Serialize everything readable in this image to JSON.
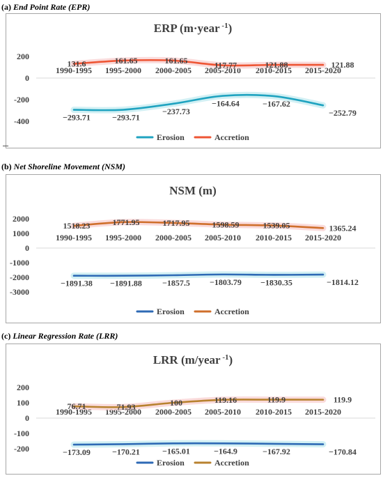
{
  "captions": [
    {
      "letter": "(a)",
      "text": "End Point Rate (EPR)"
    },
    {
      "letter": "(b)",
      "text": "Net Shoreline Movement (NSM)"
    },
    {
      "letter": "(c)",
      "text": "Linear Regression Rate (LRR)"
    }
  ],
  "colors": {
    "erosion": [
      "#1fa3c0",
      "#2e6ab5",
      "#2e6ab5"
    ],
    "accretion": [
      "#ee5534",
      "#cf6f2b",
      "#b8822f"
    ],
    "highlight_erosion": "#bfe9ef",
    "highlight_accretion": "#f8cccc"
  },
  "chart_data": [
    {
      "type": "line",
      "title": "ERP (m·year",
      "title_sup": " -1",
      "title_end": ")",
      "categories": [
        "1990-1995",
        "1995-2000",
        "2000-2005",
        "2005-2010",
        "2010-2015",
        "2015-2020"
      ],
      "y_ticks": [
        "200",
        "0",
        "-200",
        "-400"
      ],
      "ylim": [
        -400,
        200
      ],
      "series": [
        {
          "name": "Erosion",
          "values": [
            -293.71,
            -293.71,
            -237.73,
            -164.64,
            -167.62,
            -252.79
          ],
          "labels": [
            "−293.71",
            "−293.71",
            "−237.73",
            "−164.64",
            "−167.62",
            "−252.79"
          ]
        },
        {
          "name": "Accretion",
          "values": [
            131.6,
            161.65,
            161.65,
            117.77,
            121.88,
            121.88
          ],
          "labels": [
            "131.6",
            "161.65",
            "161.65",
            "117.77",
            "121.88",
            "121.88"
          ]
        }
      ],
      "legend": "bottom"
    },
    {
      "type": "line",
      "title": "NSM (m)",
      "title_sup": "",
      "title_end": "",
      "categories": [
        "1990-1995",
        "1995-2000",
        "2000-2005",
        "2005-2010",
        "2010-2015",
        "2015-2020"
      ],
      "y_ticks": [
        "2000",
        "1000",
        "0",
        "-1000",
        "-2000",
        "-3000"
      ],
      "ylim": [
        -3000,
        2000
      ],
      "series": [
        {
          "name": "Erosion",
          "values": [
            -1891.38,
            -1891.88,
            -1857.5,
            -1803.79,
            -1830.35,
            -1814.12
          ],
          "labels": [
            "−1891.38",
            "−1891.88",
            "−1857.5",
            "−1803.79",
            "−1830.35",
            "−1814.12"
          ]
        },
        {
          "name": "Accretion",
          "values": [
            1518.23,
            1771.95,
            1717.95,
            1598.59,
            1539.05,
            1365.24
          ],
          "labels": [
            "1518.23",
            "1771.95",
            "1717.95",
            "1598.59",
            "1539.05",
            "1365.24"
          ]
        }
      ],
      "legend": "bottom"
    },
    {
      "type": "line",
      "title": "LRR (m/year",
      "title_sup": " -1",
      "title_end": ")",
      "categories": [
        "1990-1995",
        "1995-2000",
        "2000-2005",
        "2005-2010",
        "2010-2015",
        "2015-2020"
      ],
      "y_ticks": [
        "200",
        "100",
        "0",
        "-100",
        "-200"
      ],
      "ylim": [
        -200,
        200
      ],
      "series": [
        {
          "name": "Erosion",
          "values": [
            -173.09,
            -170.21,
            -165.01,
            -164.9,
            -167.92,
            -170.84
          ],
          "labels": [
            "−173.09",
            "−170.21",
            "−165.01",
            "−164.9",
            "−167.92",
            "−170.84"
          ]
        },
        {
          "name": "Accretion",
          "values": [
            76.71,
            71.93,
            100,
            119.16,
            119.9,
            119.9
          ],
          "labels": [
            "76.71",
            "71.93",
            "100",
            "119.16",
            "119.9",
            "119.9"
          ]
        }
      ],
      "legend": "bottom"
    }
  ]
}
